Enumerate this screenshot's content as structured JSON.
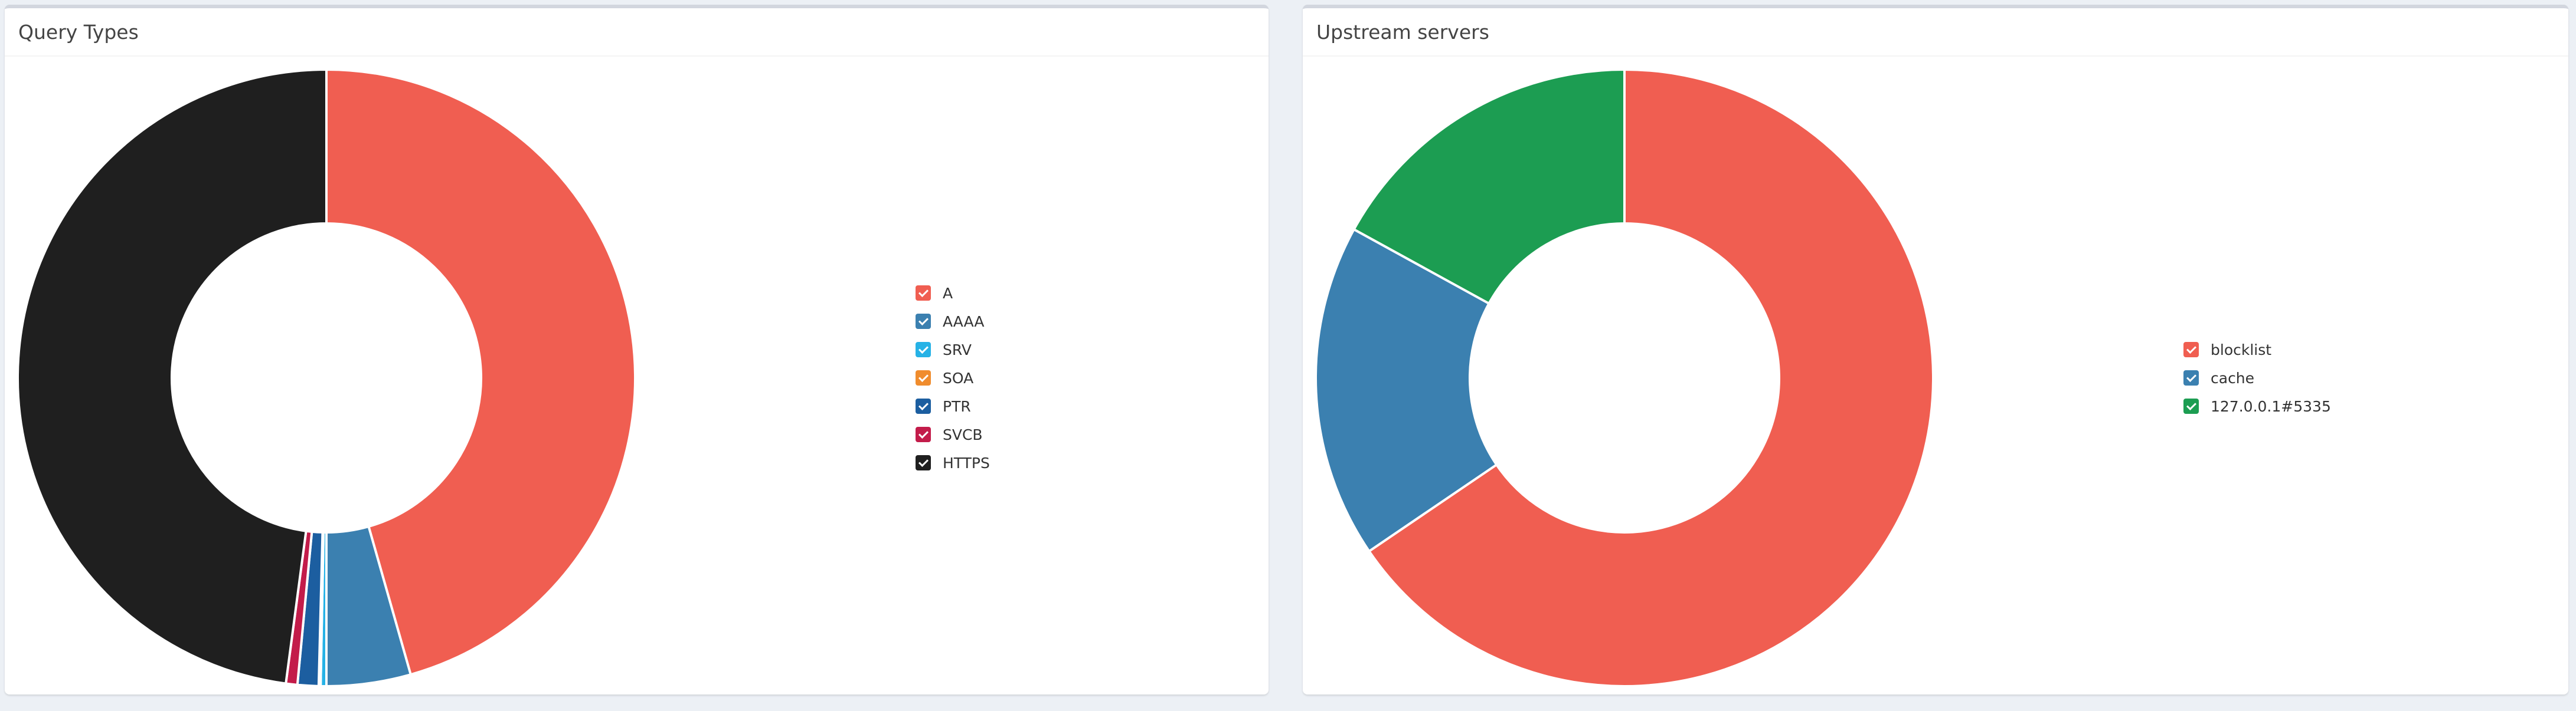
{
  "chart_data": [
    {
      "type": "pie",
      "title": "Query Types",
      "categories": [
        "A",
        "AAAA",
        "SRV",
        "SOA",
        "PTR",
        "SVCB",
        "HTTPS"
      ],
      "values": [
        45.6,
        4.4,
        0.3,
        0.1,
        1.1,
        0.6,
        47.9
      ],
      "colors": [
        "#f05e51",
        "#3b80b0",
        "#26b2e6",
        "#f08c2d",
        "#1c5ea0",
        "#c31c4a",
        "#1f1f1f"
      ],
      "legend_position": "right"
    },
    {
      "type": "pie",
      "title": "Upstream servers",
      "categories": [
        "blocklist",
        "cache",
        "127.0.0.1#5335"
      ],
      "values": [
        65.5,
        17.5,
        17.0
      ],
      "colors": [
        "#f05e51",
        "#3b80b0",
        "#1c9d52"
      ],
      "legend_position": "right"
    }
  ]
}
